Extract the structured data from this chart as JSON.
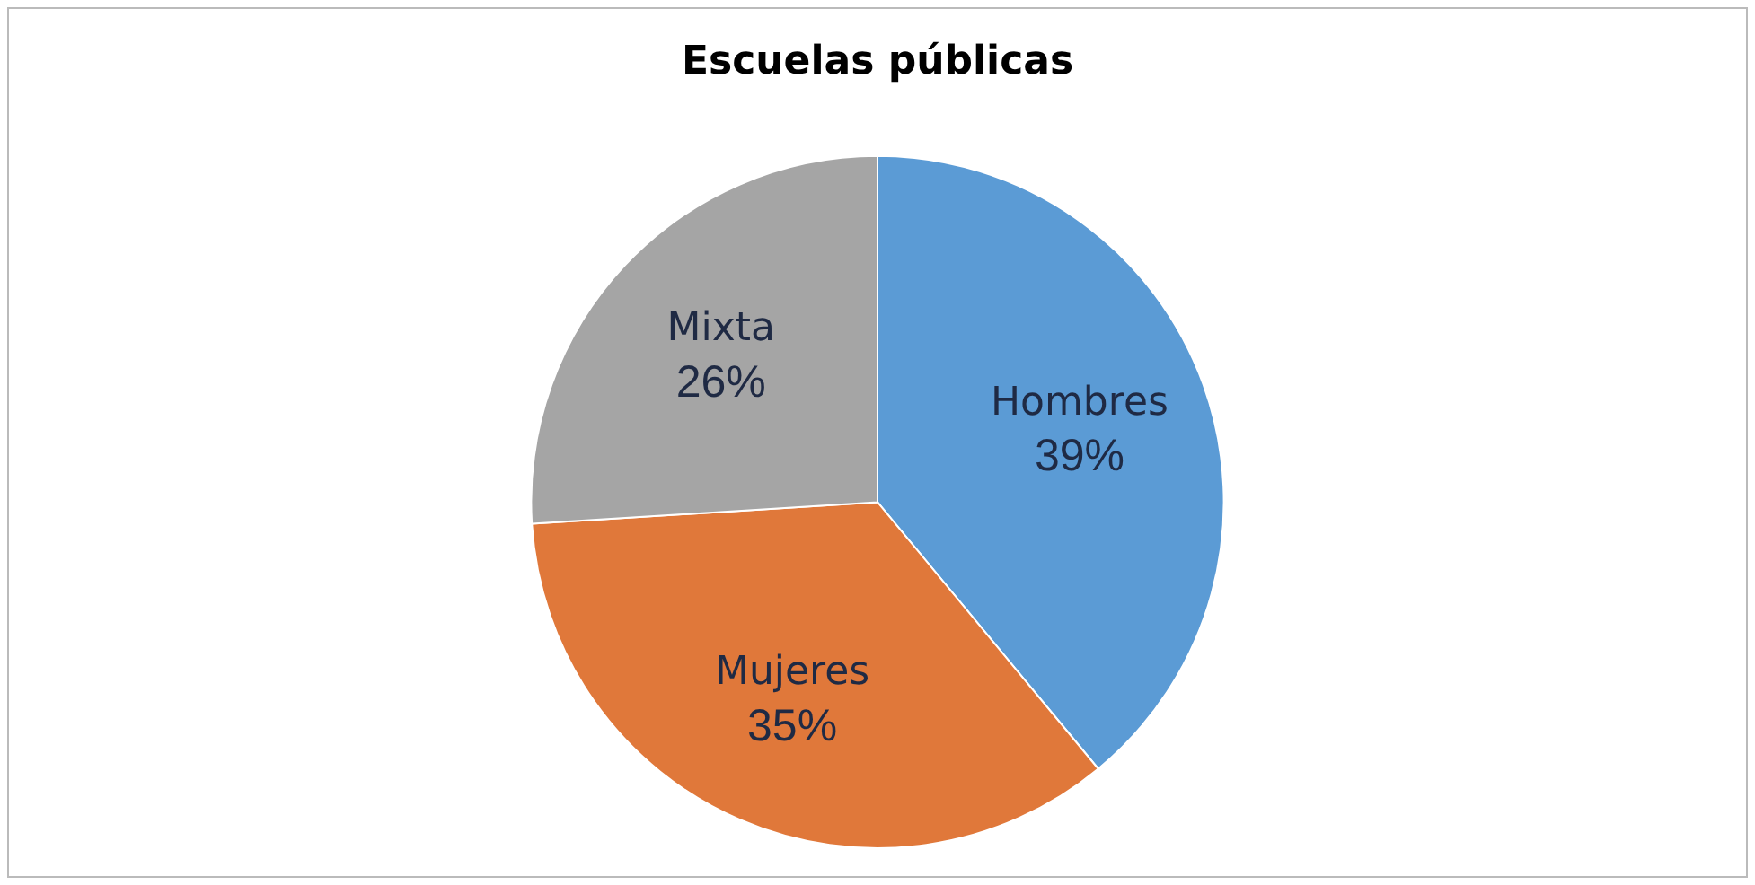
{
  "chart_data": {
    "type": "pie",
    "title": "Escuelas públicas",
    "categories": [
      "Hombres",
      "Mujeres",
      "Mixta"
    ],
    "values": [
      39,
      35,
      26
    ],
    "colors": [
      "#5b9bd5",
      "#e0783a",
      "#a5a5a5"
    ],
    "value_labels": [
      "39%",
      "35%",
      "26%"
    ],
    "legend": false
  }
}
